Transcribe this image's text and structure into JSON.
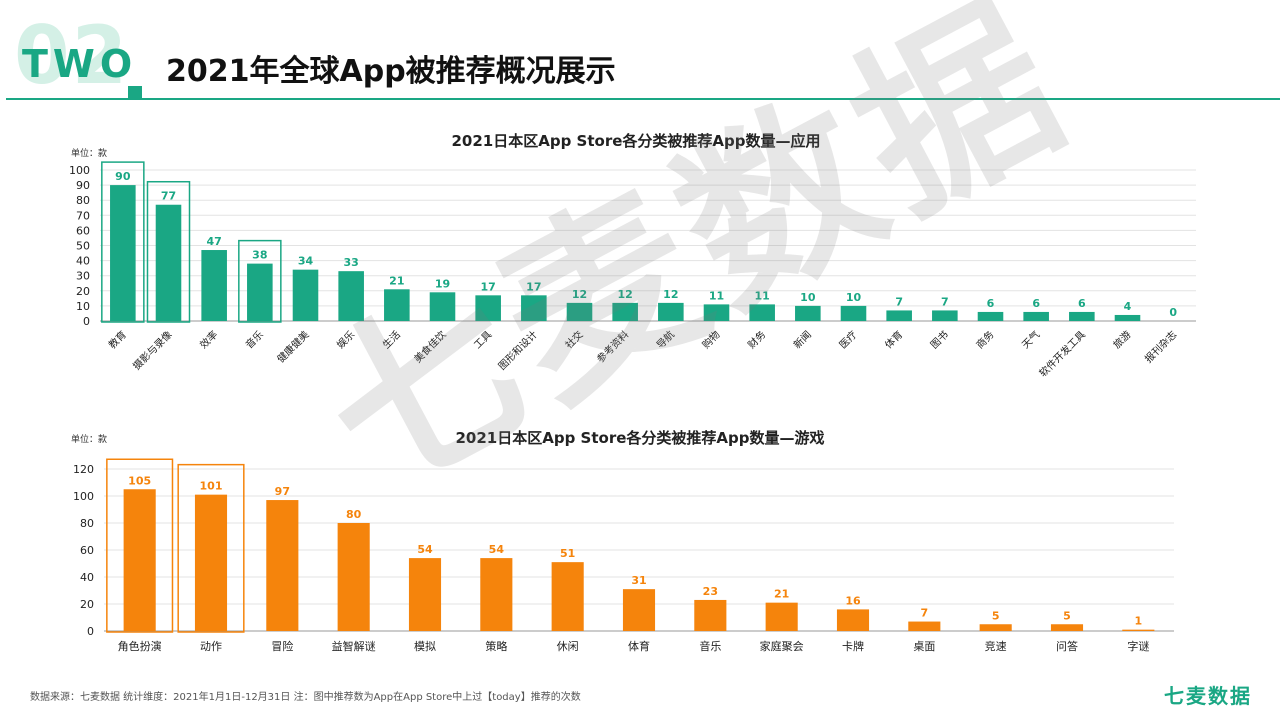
{
  "header": {
    "section_number": "02",
    "section_word": "TWO",
    "title": "2021年全球App被推荐概况展示"
  },
  "watermark": "七麦数据",
  "footer": {
    "source": "数据来源：七麦数据  统计维度：2021年1月1日-12月31日  注：图中推荐数为App在App Store中上过【today】推荐的次数",
    "brand": "七麦数据"
  },
  "colors": {
    "accent": "#1aa784",
    "app_bar": "#1aa784",
    "game_bar": "#f5840c",
    "grid": "#e3e3e3"
  },
  "chart_data": [
    {
      "type": "bar",
      "title": "2021日本区App Store各分类被推荐App数量—应用",
      "unit_label": "单位：款",
      "categories": [
        "教育",
        "摄影与录像",
        "效率",
        "音乐",
        "健康健美",
        "娱乐",
        "生活",
        "美食佳饮",
        "工具",
        "图形和设计",
        "社交",
        "参考资料",
        "导航",
        "购物",
        "财务",
        "新闻",
        "医疗",
        "体育",
        "图书",
        "商务",
        "天气",
        "软件开发工具",
        "旅游",
        "报刊杂志"
      ],
      "values": [
        90,
        77,
        47,
        38,
        34,
        33,
        21,
        19,
        17,
        17,
        12,
        12,
        12,
        11,
        11,
        10,
        10,
        7,
        7,
        6,
        6,
        6,
        4,
        0
      ],
      "highlighted": [
        "教育",
        "摄影与录像",
        "音乐"
      ],
      "ylim": [
        0,
        100
      ],
      "yticks": [
        0,
        10,
        20,
        30,
        40,
        50,
        60,
        70,
        80,
        90,
        100
      ],
      "xlabel": "",
      "ylabel": ""
    },
    {
      "type": "bar",
      "title": "2021日本区App Store各分类被推荐App数量—游戏",
      "unit_label": "单位：款",
      "categories": [
        "角色扮演",
        "动作",
        "冒险",
        "益智解谜",
        "模拟",
        "策略",
        "休闲",
        "体育",
        "音乐",
        "家庭聚会",
        "卡牌",
        "桌面",
        "竞速",
        "问答",
        "字谜"
      ],
      "values": [
        105,
        101,
        97,
        80,
        54,
        54,
        51,
        31,
        23,
        21,
        16,
        7,
        5,
        5,
        1
      ],
      "highlighted": [
        "角色扮演",
        "动作"
      ],
      "ylim": [
        0,
        120
      ],
      "yticks": [
        0,
        20,
        40,
        60,
        80,
        100,
        120
      ],
      "xlabel": "",
      "ylabel": ""
    }
  ]
}
